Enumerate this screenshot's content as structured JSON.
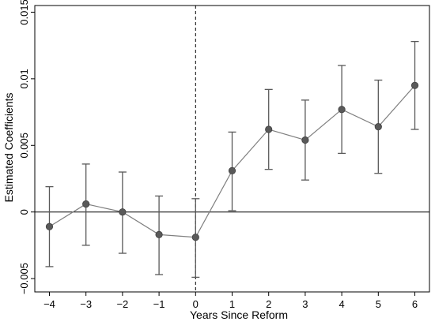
{
  "chart_data": {
    "type": "scatter",
    "title": "",
    "xlabel": "Years Since Reform",
    "ylabel": "Estimated Coefficients",
    "xlim": [
      -4.4,
      6.4
    ],
    "ylim": [
      -0.006,
      0.0155
    ],
    "x_ticks": [
      -4,
      -3,
      -2,
      -1,
      0,
      1,
      2,
      3,
      4,
      5,
      6
    ],
    "x_tick_labels": [
      "−4",
      "−3",
      "−2",
      "−1",
      "0",
      "1",
      "2",
      "3",
      "4",
      "5",
      "6"
    ],
    "y_ticks": [
      -0.005,
      0,
      0.005,
      0.01,
      0.015
    ],
    "y_tick_labels": [
      "−0.005",
      "0",
      "0.005",
      "0.01",
      "0.015"
    ],
    "reference_lines": {
      "horizontal_y": 0,
      "vertical_x_dashed": 0
    },
    "grid": false,
    "colors": {
      "marker": "#595959",
      "line": "#7f7f7f",
      "errorbar": "#595959",
      "reference": "#000000"
    },
    "series": [
      {
        "x": [
          -4,
          -3,
          -2,
          -1,
          0,
          1,
          2,
          3,
          4,
          5,
          6
        ],
        "y": [
          -0.0011,
          0.0006,
          0.0,
          -0.0017,
          -0.0019,
          0.0031,
          0.0062,
          0.0054,
          0.0077,
          0.0064,
          0.0095
        ],
        "ci_low": [
          -0.0041,
          -0.0025,
          -0.0031,
          -0.0047,
          -0.0049,
          0.0001,
          0.0032,
          0.0024,
          0.0044,
          0.0029,
          0.0062
        ],
        "ci_high": [
          0.0019,
          0.0036,
          0.003,
          0.0012,
          0.001,
          0.006,
          0.0092,
          0.0084,
          0.011,
          0.0099,
          0.0128
        ]
      }
    ]
  }
}
